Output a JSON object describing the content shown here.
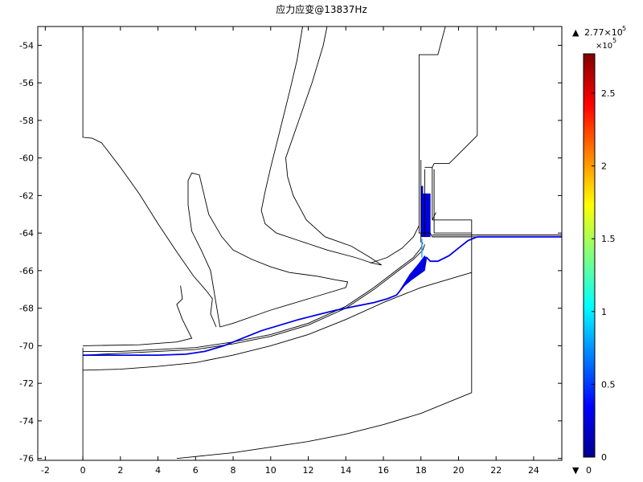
{
  "chart_data": {
    "type": "heatmap",
    "title": "应力应变@13837Hz",
    "xlabel": "",
    "ylabel": "",
    "xlim": [
      -2.4,
      25.5
    ],
    "ylim": [
      -76.1,
      -53.0
    ],
    "x_ticks": [
      "-2",
      "0",
      "2",
      "4",
      "6",
      "8",
      "10",
      "12",
      "14",
      "16",
      "18",
      "20",
      "22",
      "24"
    ],
    "y_ticks": [
      "-54",
      "-56",
      "-58",
      "-60",
      "-62",
      "-64",
      "-66",
      "-68",
      "-70",
      "-72",
      "-74",
      "-76"
    ],
    "grid": false,
    "colorbar": {
      "colormap": "rainbow",
      "min": 0,
      "max": 277000.0,
      "max_label": "2.77×10",
      "max_label_exp": "5",
      "min_label": "0",
      "multiplier_label": "×10",
      "multiplier_exp": "5",
      "ticks": [
        "0",
        "0.5",
        "1",
        "1.5",
        "2",
        "2.5"
      ],
      "max_marker": "▲",
      "min_marker": "▼",
      "colors": [
        "#00008f",
        "#0000ff",
        "#0080ff",
        "#00ffff",
        "#80ff80",
        "#ffff00",
        "#ff8000",
        "#ff0000",
        "#800000"
      ]
    },
    "geometry_color": "#000000",
    "mode_shape_color": "#0000e6",
    "geometry_lines": [
      [
        [
          0,
          -53
        ],
        [
          0,
          -58.9
        ],
        [
          0.5,
          -58.95
        ],
        [
          1,
          -59.2
        ],
        [
          2,
          -60.5
        ],
        [
          3,
          -61.9
        ],
        [
          4,
          -63.5
        ],
        [
          5,
          -65
        ],
        [
          5.9,
          -66.3
        ],
        [
          6.6,
          -67.1
        ],
        [
          6.9,
          -67.5
        ],
        [
          6.8,
          -68.3
        ],
        [
          7.1,
          -69
        ]
      ],
      [
        [
          0,
          -70
        ],
        [
          3,
          -69.95
        ],
        [
          5,
          -69.8
        ],
        [
          5.8,
          -69.6
        ],
        [
          5.3,
          -68.6
        ],
        [
          5.0,
          -67.8
        ],
        [
          5.3,
          -67.5
        ],
        [
          5.2,
          -66.8
        ]
      ],
      [
        [
          0.0,
          -70.3
        ],
        [
          1,
          -70.3
        ],
        [
          2,
          -70.3
        ],
        [
          4,
          -70.2
        ],
        [
          6,
          -70.1
        ],
        [
          8,
          -69.8
        ],
        [
          10,
          -69.4
        ],
        [
          12,
          -68.8
        ],
        [
          14,
          -67.9
        ],
        [
          15.5,
          -66.9
        ],
        [
          16.8,
          -65.9
        ],
        [
          17.6,
          -65.3
        ],
        [
          18.0,
          -64.8
        ],
        [
          18.1,
          -64.5
        ]
      ],
      [
        [
          0.0,
          -70.5
        ],
        [
          1,
          -70.45
        ],
        [
          2,
          -70.4
        ],
        [
          4,
          -70.3
        ],
        [
          6,
          -70.2
        ],
        [
          8,
          -69.9
        ],
        [
          10,
          -69.5
        ],
        [
          12,
          -68.9
        ],
        [
          14,
          -68.0
        ],
        [
          15.5,
          -67.0
        ],
        [
          16.8,
          -66.0
        ],
        [
          17.6,
          -65.4
        ],
        [
          18.1,
          -64.9
        ],
        [
          18.2,
          -64.6
        ]
      ],
      [
        [
          7.3,
          -69.0
        ],
        [
          7.0,
          -67.2
        ],
        [
          6.8,
          -66.0
        ],
        [
          6.3,
          -64.9
        ],
        [
          5.8,
          -63.9
        ],
        [
          5.6,
          -62.5
        ],
        [
          5.6,
          -61.2
        ],
        [
          5.8,
          -60.8
        ],
        [
          6.2,
          -60.9
        ],
        [
          6.7,
          -63.0
        ],
        [
          7.4,
          -64.2
        ],
        [
          8,
          -64.9
        ],
        [
          9,
          -65.4
        ],
        [
          10,
          -65.8
        ],
        [
          11,
          -66.1
        ],
        [
          12.5,
          -66.3
        ],
        [
          13.5,
          -66.5
        ],
        [
          14.1,
          -66.6
        ],
        [
          14.0,
          -66.9
        ],
        [
          12,
          -67.5
        ],
        [
          10,
          -68.1
        ],
        [
          8,
          -68.8
        ],
        [
          7.3,
          -69.0
        ]
      ],
      [
        [
          0,
          -71.3
        ],
        [
          2,
          -71.25
        ],
        [
          4,
          -71.1
        ],
        [
          6,
          -70.9
        ],
        [
          8,
          -70.5
        ],
        [
          10,
          -70.0
        ],
        [
          12,
          -69.4
        ],
        [
          14,
          -68.6
        ],
        [
          16,
          -67.7
        ],
        [
          18,
          -66.9
        ],
        [
          20.7,
          -66.1
        ]
      ],
      [
        [
          0,
          -70.1
        ],
        [
          0,
          -76.1
        ]
      ],
      [
        [
          20.7,
          -64.0
        ],
        [
          20.7,
          -72.5
        ]
      ],
      [
        [
          20.7,
          -72.5
        ],
        [
          18,
          -73.6
        ],
        [
          16,
          -74.2
        ],
        [
          14,
          -74.7
        ],
        [
          12,
          -75.1
        ],
        [
          10,
          -75.4
        ],
        [
          8,
          -75.7
        ],
        [
          6,
          -75.9
        ],
        [
          5,
          -76.0
        ]
      ],
      [
        [
          13,
          -53
        ],
        [
          12.8,
          -54
        ],
        [
          12.2,
          -56
        ],
        [
          11.5,
          -58
        ],
        [
          10.8,
          -60
        ],
        [
          10.9,
          -61
        ],
        [
          11.2,
          -62
        ],
        [
          11.9,
          -63.3
        ],
        [
          12.9,
          -64.2
        ],
        [
          14.3,
          -64.7
        ],
        [
          15.3,
          -65.3
        ],
        [
          15.9,
          -65.7
        ],
        [
          15.4,
          -65.6
        ],
        [
          14.5,
          -65.3
        ],
        [
          13,
          -64.9
        ],
        [
          11.5,
          -64.4
        ],
        [
          10.3,
          -64.0
        ],
        [
          9.7,
          -63.5
        ],
        [
          9.5,
          -62.8
        ],
        [
          9.7,
          -61.8
        ],
        [
          10,
          -60.5
        ],
        [
          10.5,
          -58.5
        ],
        [
          11,
          -56.5
        ],
        [
          11.4,
          -54.8
        ],
        [
          11.7,
          -53
        ]
      ],
      [
        [
          15.3,
          -65.6
        ],
        [
          16.2,
          -65.3
        ],
        [
          17.0,
          -64.8
        ],
        [
          17.6,
          -64.2
        ],
        [
          17.9,
          -63.6
        ]
      ],
      [
        [
          19.3,
          -53
        ],
        [
          18.9,
          -54.5
        ],
        [
          17.9,
          -54.5
        ],
        [
          17.9,
          -64.0
        ],
        [
          18.5,
          -64.0
        ]
      ],
      [
        [
          18.5,
          -64.0
        ],
        [
          18.6,
          -64.2
        ],
        [
          20.7,
          -64.2
        ]
      ],
      [
        [
          18.0,
          -60.1
        ],
        [
          18.0,
          -64.5
        ]
      ],
      [
        [
          18.2,
          -60.6
        ],
        [
          18.2,
          -64.2
        ]
      ],
      [
        [
          18.7,
          -60.6
        ],
        [
          18.7,
          -64.0
        ],
        [
          20.7,
          -64.0
        ]
      ],
      [
        [
          18.6,
          -63.3
        ],
        [
          20.7,
          -63.3
        ],
        [
          20.7,
          -64.0
        ]
      ],
      [
        [
          18.2,
          -60.5
        ],
        [
          18.6,
          -60.5
        ],
        [
          18.6,
          -63.3
        ]
      ],
      [
        [
          18.6,
          -63.3
        ],
        [
          18.8,
          -62.9
        ]
      ],
      [
        [
          18.6,
          -60.5
        ],
        [
          18.7,
          -60.3
        ],
        [
          19.5,
          -60.3
        ],
        [
          20.2,
          -59.6
        ],
        [
          20.9,
          -58.9
        ],
        [
          21.0,
          -58.8
        ],
        [
          21.0,
          -53
        ]
      ],
      [
        [
          18.6,
          -64.2
        ],
        [
          25.5,
          -64.2
        ]
      ],
      [
        [
          18.6,
          -64.1
        ],
        [
          25.5,
          -64.1
        ]
      ]
    ],
    "mode_shape_lines": [
      [
        [
          0,
          -70.5
        ],
        [
          2,
          -70.5
        ],
        [
          4,
          -70.5
        ],
        [
          5.5,
          -70.45
        ],
        [
          6.5,
          -70.3
        ],
        [
          7.5,
          -70.0
        ],
        [
          8.5,
          -69.6
        ],
        [
          9.5,
          -69.2
        ],
        [
          10.5,
          -68.9
        ],
        [
          11.5,
          -68.6
        ],
        [
          12.5,
          -68.35
        ],
        [
          13.5,
          -68.1
        ],
        [
          14.5,
          -67.9
        ],
        [
          15.5,
          -67.7
        ],
        [
          16.2,
          -67.5
        ],
        [
          16.7,
          -67.3
        ],
        [
          17.1,
          -66.8
        ],
        [
          17.4,
          -66.3
        ],
        [
          17.8,
          -65.8
        ],
        [
          18.1,
          -65.4
        ],
        [
          18.3,
          -65.3
        ],
        [
          18.5,
          -65.5
        ],
        [
          18.9,
          -65.5
        ],
        [
          19.5,
          -65.2
        ],
        [
          20.0,
          -64.8
        ],
        [
          20.5,
          -64.4
        ],
        [
          21.0,
          -64.2
        ],
        [
          22,
          -64.2
        ],
        [
          25.5,
          -64.2
        ]
      ]
    ],
    "filled_regions": [
      [
        [
          16.9,
          -67.0
        ],
        [
          17.4,
          -66.2
        ],
        [
          17.9,
          -65.6
        ],
        [
          18.2,
          -65.2
        ],
        [
          18.3,
          -65.4
        ],
        [
          18.2,
          -66.0
        ],
        [
          17.5,
          -66.5
        ],
        [
          16.9,
          -67.0
        ]
      ],
      [
        [
          18.1,
          -61.9
        ],
        [
          18.5,
          -61.9
        ],
        [
          18.5,
          -64.2
        ],
        [
          18.1,
          -64.2
        ]
      ],
      [
        [
          18.0,
          -61.5
        ],
        [
          18.1,
          -61.5
        ],
        [
          18.1,
          -64.2
        ],
        [
          18.0,
          -64.2
        ]
      ]
    ],
    "cyan_lines": [
      [
        [
          18.05,
          -64.3
        ],
        [
          18.05,
          -65.3
        ]
      ]
    ]
  }
}
